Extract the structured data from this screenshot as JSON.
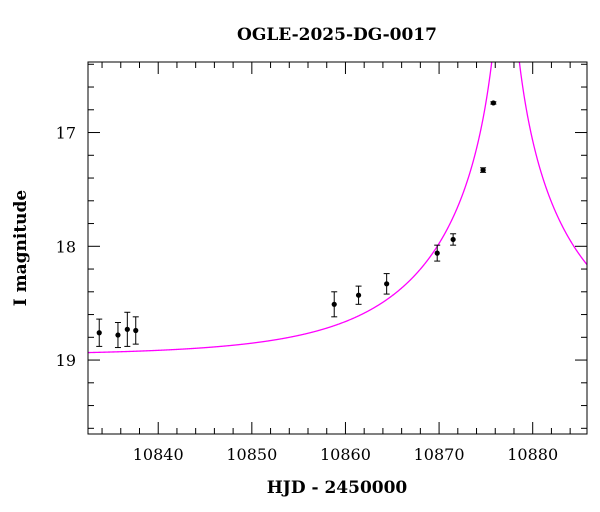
{
  "chart_data": {
    "type": "scatter",
    "title": "OGLE-2025-DG-0017",
    "xlabel": "HJD - 2450000",
    "ylabel": "I magnitude",
    "xlim": [
      10832.5,
      10885.8
    ],
    "ylim": [
      19.65,
      16.38
    ],
    "y_inverted": true,
    "x_ticks": [
      10840,
      10850,
      10860,
      10870,
      10880
    ],
    "y_ticks": [
      17,
      18,
      19
    ],
    "colors": {
      "data": "#000000",
      "model": "#ff00ff",
      "axes": "#000000"
    },
    "series": [
      {
        "type": "points_with_errorbars",
        "points": [
          {
            "x": 10833.7,
            "y": 18.76,
            "err": 0.12
          },
          {
            "x": 10835.7,
            "y": 18.78,
            "err": 0.11
          },
          {
            "x": 10836.7,
            "y": 18.73,
            "err": 0.15
          },
          {
            "x": 10837.6,
            "y": 18.74,
            "err": 0.12
          },
          {
            "x": 10858.8,
            "y": 18.51,
            "err": 0.11
          },
          {
            "x": 10861.4,
            "y": 18.43,
            "err": 0.08
          },
          {
            "x": 10864.4,
            "y": 18.33,
            "err": 0.09
          },
          {
            "x": 10869.8,
            "y": 18.06,
            "err": 0.07
          },
          {
            "x": 10871.5,
            "y": 17.94,
            "err": 0.05
          },
          {
            "x": 10874.7,
            "y": 17.33,
            "err": 0.02
          },
          {
            "x": 10875.8,
            "y": 16.74,
            "err": 0.01
          }
        ]
      },
      {
        "type": "model_curve",
        "model": {
          "baseline": 18.96,
          "t0": 10877.1,
          "u0": 0.026,
          "tE": 16.5
        }
      }
    ]
  }
}
